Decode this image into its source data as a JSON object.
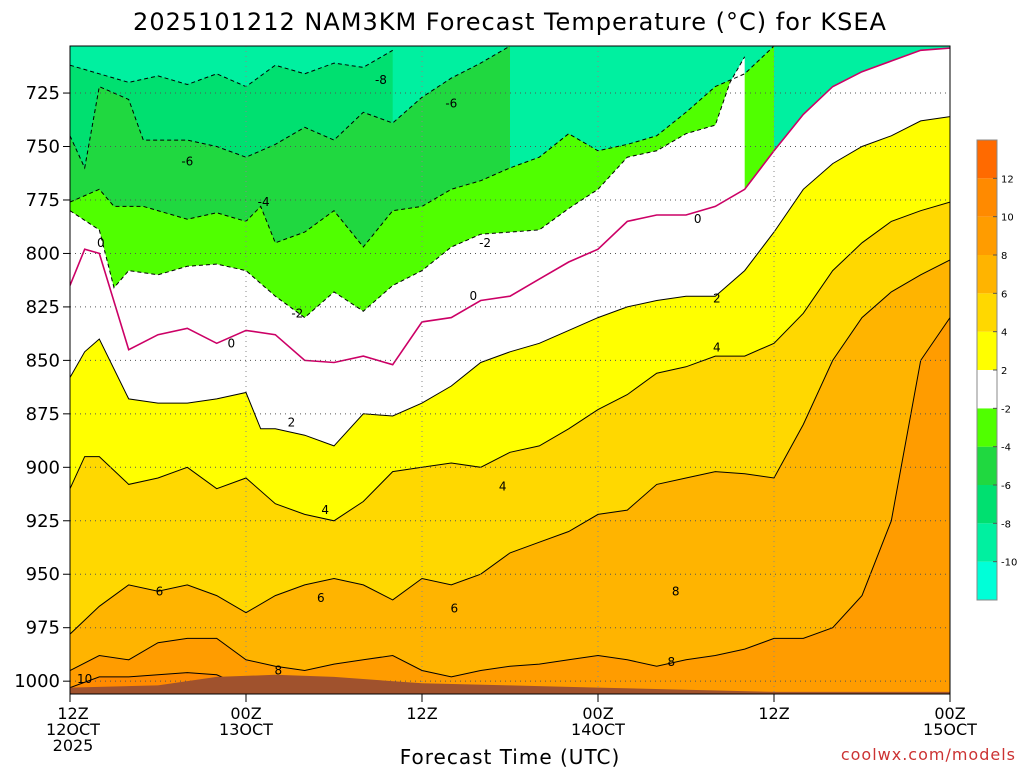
{
  "chart_data": {
    "type": "heatmap",
    "title": "2025101212 NAM3KM Forecast Temperature (°C) for KSEA",
    "xlabel": "Forecast Time (UTC)",
    "ylabel": "",
    "credit": "coolwx.com/models",
    "x_unit": "forecast hour",
    "xlim": [
      0,
      60
    ],
    "y_unit": "hPa",
    "ylim": [
      1006,
      703
    ],
    "y_ticks": [
      725,
      750,
      775,
      800,
      825,
      850,
      875,
      900,
      925,
      950,
      975,
      1000
    ],
    "x_ticks": [
      {
        "hour": 0,
        "lines": [
          "12Z",
          "12OCT",
          "2025"
        ]
      },
      {
        "hour": 12,
        "lines": [
          "00Z",
          "13OCT"
        ]
      },
      {
        "hour": 24,
        "lines": [
          "12Z"
        ]
      },
      {
        "hour": 36,
        "lines": [
          "00Z",
          "14OCT"
        ]
      },
      {
        "hour": 48,
        "lines": [
          "12Z"
        ]
      },
      {
        "hour": 60,
        "lines": [
          "00Z",
          "15OCT"
        ]
      }
    ],
    "colorbar": {
      "levels": [
        -12,
        -10,
        -8,
        -6,
        -4,
        -2,
        2,
        4,
        6,
        8,
        10,
        12,
        14
      ],
      "colors": [
        "#00ffd8",
        "#00f0a0",
        "#00e070",
        "#20d840",
        "#50ff00",
        "#ffffff",
        "#ffff00",
        "#ffd800",
        "#ffb400",
        "#ff9c00",
        "#ff8a00",
        "#ff6a00"
      ],
      "tick_labels": [
        "12",
        "10",
        "8",
        "6",
        "4",
        "2",
        "-2",
        "-4",
        "-6",
        "-8",
        "-10"
      ]
    },
    "surface_color": "#a0522d",
    "zero_isotherm_color": "#cc0066",
    "isotherms": [
      {
        "value": -8,
        "label": "-8",
        "points": [
          [
            0,
            712
          ],
          [
            2,
            716
          ],
          [
            4,
            720
          ],
          [
            6,
            717
          ],
          [
            8,
            721
          ],
          [
            10,
            716
          ],
          [
            12,
            722
          ],
          [
            14,
            712
          ],
          [
            16,
            716
          ],
          [
            18,
            711
          ],
          [
            20,
            713
          ],
          [
            22,
            705
          ]
        ]
      },
      {
        "value": -6,
        "label": "-6",
        "points": [
          [
            0,
            745
          ],
          [
            1,
            760
          ],
          [
            2,
            722
          ],
          [
            4,
            728
          ],
          [
            5,
            747
          ],
          [
            8,
            747
          ],
          [
            10,
            750
          ],
          [
            12,
            755
          ],
          [
            14,
            749
          ],
          [
            16,
            741
          ],
          [
            18,
            747
          ],
          [
            20,
            734
          ],
          [
            22,
            739
          ],
          [
            24,
            727
          ],
          [
            26,
            718
          ],
          [
            28,
            711
          ],
          [
            30,
            703
          ]
        ]
      },
      {
        "value": -4,
        "label": "-4",
        "points": [
          [
            0,
            776
          ],
          [
            2,
            770
          ],
          [
            3,
            778
          ],
          [
            5,
            778
          ],
          [
            8,
            784
          ],
          [
            10,
            781
          ],
          [
            12,
            785
          ],
          [
            13,
            778
          ],
          [
            14,
            795
          ],
          [
            16,
            790
          ],
          [
            18,
            780
          ],
          [
            20,
            797
          ],
          [
            22,
            780
          ],
          [
            24,
            778
          ],
          [
            26,
            770
          ],
          [
            28,
            766
          ],
          [
            30,
            760
          ],
          [
            32,
            755
          ],
          [
            34,
            744
          ],
          [
            36,
            752
          ],
          [
            38,
            749
          ],
          [
            40,
            745
          ],
          [
            42,
            734
          ],
          [
            44,
            722
          ],
          [
            46,
            716
          ],
          [
            48,
            703
          ]
        ]
      },
      {
        "value": -2,
        "label": "-2",
        "points": [
          [
            0,
            780
          ],
          [
            2,
            789
          ],
          [
            3,
            816
          ],
          [
            4,
            808
          ],
          [
            6,
            810
          ],
          [
            8,
            806
          ],
          [
            10,
            805
          ],
          [
            12,
            808
          ],
          [
            14,
            820
          ],
          [
            16,
            830
          ],
          [
            18,
            818
          ],
          [
            20,
            827
          ],
          [
            22,
            815
          ],
          [
            24,
            808
          ],
          [
            26,
            797
          ],
          [
            28,
            791
          ],
          [
            30,
            790
          ],
          [
            32,
            789
          ],
          [
            34,
            779
          ],
          [
            36,
            770
          ],
          [
            38,
            755
          ],
          [
            40,
            752
          ],
          [
            42,
            744
          ],
          [
            44,
            740
          ],
          [
            45,
            720
          ],
          [
            46,
            708
          ]
        ]
      },
      {
        "value": 0,
        "label": "0",
        "points": [
          [
            0,
            815
          ],
          [
            1,
            798
          ],
          [
            2,
            800
          ],
          [
            4,
            845
          ],
          [
            6,
            838
          ],
          [
            8,
            835
          ],
          [
            10,
            842
          ],
          [
            12,
            836
          ],
          [
            14,
            838
          ],
          [
            16,
            850
          ],
          [
            18,
            851
          ],
          [
            20,
            848
          ],
          [
            22,
            852
          ],
          [
            24,
            832
          ],
          [
            26,
            830
          ],
          [
            28,
            822
          ],
          [
            30,
            820
          ],
          [
            32,
            812
          ],
          [
            34,
            804
          ],
          [
            36,
            798
          ],
          [
            38,
            785
          ],
          [
            40,
            782
          ],
          [
            42,
            782
          ],
          [
            44,
            778
          ],
          [
            46,
            770
          ],
          [
            48,
            752
          ],
          [
            50,
            735
          ],
          [
            52,
            722
          ],
          [
            54,
            715
          ],
          [
            56,
            710
          ],
          [
            58,
            705
          ],
          [
            60,
            704
          ]
        ]
      },
      {
        "value": 2,
        "label": "2",
        "points": [
          [
            0,
            858
          ],
          [
            1,
            846
          ],
          [
            2,
            840
          ],
          [
            4,
            868
          ],
          [
            6,
            870
          ],
          [
            8,
            870
          ],
          [
            10,
            868
          ],
          [
            12,
            865
          ],
          [
            13,
            882
          ],
          [
            14,
            882
          ],
          [
            16,
            885
          ],
          [
            18,
            890
          ],
          [
            20,
            875
          ],
          [
            22,
            876
          ],
          [
            24,
            870
          ],
          [
            26,
            862
          ],
          [
            28,
            851
          ],
          [
            30,
            846
          ],
          [
            32,
            842
          ],
          [
            34,
            836
          ],
          [
            36,
            830
          ],
          [
            38,
            825
          ],
          [
            40,
            822
          ],
          [
            42,
            820
          ],
          [
            44,
            820
          ],
          [
            46,
            808
          ],
          [
            48,
            790
          ],
          [
            50,
            770
          ],
          [
            52,
            758
          ],
          [
            54,
            750
          ],
          [
            56,
            745
          ],
          [
            58,
            738
          ],
          [
            60,
            736
          ]
        ]
      },
      {
        "value": 4,
        "label": "4",
        "points": [
          [
            0,
            910
          ],
          [
            1,
            895
          ],
          [
            2,
            895
          ],
          [
            4,
            908
          ],
          [
            6,
            905
          ],
          [
            8,
            900
          ],
          [
            10,
            910
          ],
          [
            12,
            905
          ],
          [
            14,
            917
          ],
          [
            16,
            922
          ],
          [
            18,
            925
          ],
          [
            20,
            916
          ],
          [
            22,
            902
          ],
          [
            24,
            900
          ],
          [
            26,
            898
          ],
          [
            28,
            900
          ],
          [
            30,
            893
          ],
          [
            32,
            890
          ],
          [
            34,
            882
          ],
          [
            36,
            873
          ],
          [
            38,
            866
          ],
          [
            40,
            856
          ],
          [
            42,
            853
          ],
          [
            44,
            848
          ],
          [
            46,
            848
          ],
          [
            48,
            842
          ],
          [
            50,
            828
          ],
          [
            52,
            808
          ],
          [
            54,
            795
          ],
          [
            56,
            785
          ],
          [
            58,
            780
          ],
          [
            60,
            776
          ]
        ]
      },
      {
        "value": 6,
        "label": "6",
        "points": [
          [
            0,
            978
          ],
          [
            2,
            965
          ],
          [
            4,
            955
          ],
          [
            6,
            958
          ],
          [
            8,
            955
          ],
          [
            10,
            960
          ],
          [
            12,
            968
          ],
          [
            14,
            960
          ],
          [
            16,
            955
          ],
          [
            18,
            952
          ],
          [
            20,
            955
          ],
          [
            22,
            962
          ],
          [
            24,
            952
          ],
          [
            26,
            955
          ],
          [
            28,
            950
          ],
          [
            30,
            940
          ],
          [
            32,
            935
          ],
          [
            34,
            930
          ],
          [
            36,
            922
          ],
          [
            38,
            920
          ],
          [
            40,
            908
          ],
          [
            42,
            905
          ],
          [
            44,
            902
          ],
          [
            46,
            903
          ],
          [
            48,
            905
          ],
          [
            50,
            880
          ],
          [
            52,
            850
          ],
          [
            54,
            830
          ],
          [
            56,
            818
          ],
          [
            58,
            810
          ],
          [
            60,
            803
          ]
        ]
      },
      {
        "value": 8,
        "label": "8",
        "points": [
          [
            0,
            995
          ],
          [
            2,
            988
          ],
          [
            4,
            990
          ],
          [
            6,
            982
          ],
          [
            8,
            980
          ],
          [
            10,
            980
          ],
          [
            12,
            990
          ],
          [
            14,
            993
          ],
          [
            16,
            995
          ],
          [
            18,
            992
          ],
          [
            20,
            990
          ],
          [
            22,
            988
          ],
          [
            24,
            995
          ],
          [
            26,
            998
          ],
          [
            28,
            995
          ],
          [
            30,
            993
          ],
          [
            32,
            992
          ],
          [
            34,
            990
          ],
          [
            36,
            988
          ],
          [
            38,
            990
          ],
          [
            40,
            993
          ],
          [
            42,
            990
          ],
          [
            44,
            988
          ],
          [
            46,
            985
          ],
          [
            48,
            980
          ],
          [
            50,
            980
          ],
          [
            52,
            975
          ],
          [
            54,
            960
          ],
          [
            56,
            925
          ],
          [
            58,
            850
          ],
          [
            60,
            830
          ]
        ]
      },
      {
        "value": 10,
        "label": "10",
        "points": [
          [
            0,
            1003
          ],
          [
            2,
            998
          ],
          [
            4,
            998
          ],
          [
            6,
            997
          ],
          [
            8,
            996
          ],
          [
            10,
            997
          ],
          [
            12,
            1003
          ],
          [
            14,
            1003
          ]
        ]
      }
    ],
    "contour_labels": [
      {
        "text": "-8",
        "at": [
          21.2,
          719
        ]
      },
      {
        "text": "-6",
        "at": [
          26,
          730
        ]
      },
      {
        "text": "-6",
        "at": [
          8,
          757
        ]
      },
      {
        "text": "-4",
        "at": [
          13.2,
          776
        ]
      },
      {
        "text": "-2",
        "at": [
          28.3,
          795
        ]
      },
      {
        "text": "-2",
        "at": [
          15.5,
          828
        ]
      },
      {
        "text": "0",
        "at": [
          2.1,
          795
        ]
      },
      {
        "text": "0",
        "at": [
          11,
          842
        ]
      },
      {
        "text": "0",
        "at": [
          27.5,
          820
        ]
      },
      {
        "text": "0",
        "at": [
          42.8,
          784
        ]
      },
      {
        "text": "2",
        "at": [
          15.1,
          879
        ]
      },
      {
        "text": "2",
        "at": [
          44.1,
          821
        ]
      },
      {
        "text": "4",
        "at": [
          17.4,
          920
        ]
      },
      {
        "text": "4",
        "at": [
          29.5,
          909
        ]
      },
      {
        "text": "4",
        "at": [
          44.1,
          844
        ]
      },
      {
        "text": "6",
        "at": [
          6.1,
          958
        ]
      },
      {
        "text": "6",
        "at": [
          17.1,
          961
        ]
      },
      {
        "text": "6",
        "at": [
          26.2,
          966
        ]
      },
      {
        "text": "8",
        "at": [
          14.2,
          995
        ]
      },
      {
        "text": "8",
        "at": [
          41.3,
          958
        ]
      },
      {
        "text": "8",
        "at": [
          41.0,
          991
        ]
      },
      {
        "text": "10",
        "at": [
          1.0,
          999
        ]
      }
    ]
  }
}
